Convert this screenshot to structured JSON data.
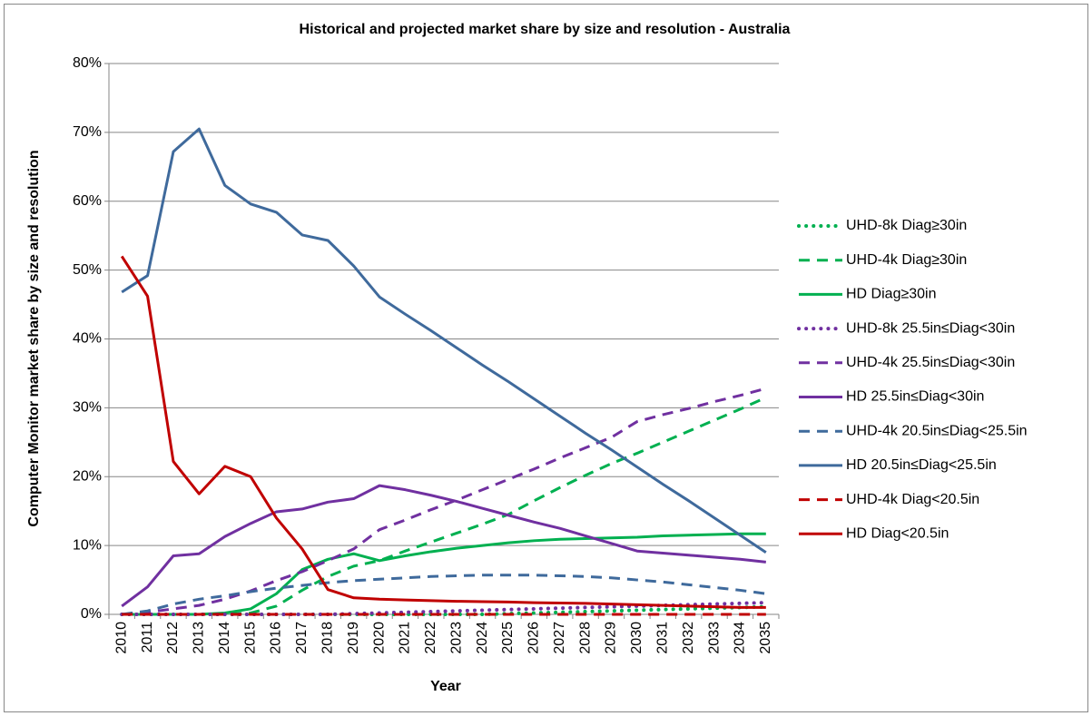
{
  "chart_data": {
    "type": "line",
    "title": "Historical and projected market share by size and resolution - Australia",
    "x_label": "Year",
    "y_label": "Computer Monitor market share by size and resolution",
    "categories": [
      "2010",
      "2011",
      "2012",
      "2013",
      "2014",
      "2015",
      "2016",
      "2017",
      "2018",
      "2019",
      "2020",
      "2021",
      "2022",
      "2023",
      "2024",
      "2025",
      "2026",
      "2027",
      "2028",
      "2029",
      "2030",
      "2031",
      "2032",
      "2033",
      "2034",
      "2035"
    ],
    "ylim": [
      0,
      80
    ],
    "yticks": [
      {
        "value": 0,
        "label": "0%"
      },
      {
        "value": 10,
        "label": "10%"
      },
      {
        "value": 20,
        "label": "20%"
      },
      {
        "value": 30,
        "label": "30%"
      },
      {
        "value": 40,
        "label": "40%"
      },
      {
        "value": 50,
        "label": "50%"
      },
      {
        "value": 60,
        "label": "60%"
      },
      {
        "value": 70,
        "label": "70%"
      },
      {
        "value": 80,
        "label": "80%"
      }
    ],
    "grid": true,
    "legend": "right",
    "series": [
      {
        "name": "UHD-8k Diag≥30in",
        "color": "#00b050",
        "dash": "dotted",
        "values": [
          0,
          0,
          0,
          0,
          0,
          0,
          0,
          0,
          0,
          0,
          0,
          0,
          0,
          0,
          0,
          0.1,
          0.2,
          0.3,
          0.4,
          0.5,
          0.6,
          0.7,
          0.8,
          0.9,
          1.0,
          1.1
        ]
      },
      {
        "name": "UHD-4k Diag≥30in",
        "color": "#00b050",
        "dash": "dashed",
        "values": [
          0,
          0,
          0,
          0,
          0,
          0.2,
          1.2,
          3.5,
          5.5,
          7.0,
          7.8,
          9.2,
          10.5,
          11.8,
          13.1,
          14.5,
          16.5,
          18.4,
          20.2,
          21.9,
          23.4,
          25.0,
          26.6,
          28.2,
          29.8,
          31.5
        ]
      },
      {
        "name": "HD Diag≥30in",
        "color": "#00b050",
        "dash": "solid",
        "values": [
          0,
          0,
          0,
          0,
          0.2,
          0.8,
          3.0,
          6.5,
          8.0,
          8.8,
          7.8,
          8.5,
          9.1,
          9.6,
          10.0,
          10.4,
          10.7,
          10.9,
          11.0,
          11.1,
          11.2,
          11.4,
          11.5,
          11.6,
          11.7,
          11.7
        ]
      },
      {
        "name": "UHD-8k 25.5in≤Diag<30in",
        "color": "#7030a0",
        "dash": "dotted",
        "values": [
          0,
          0,
          0,
          0,
          0,
          0,
          0,
          0,
          0,
          0.1,
          0.2,
          0.3,
          0.4,
          0.5,
          0.6,
          0.7,
          0.8,
          0.9,
          1.0,
          1.1,
          1.2,
          1.3,
          1.4,
          1.5,
          1.6,
          1.7
        ]
      },
      {
        "name": "UHD-4k 25.5in≤Diag<30in",
        "color": "#7030a0",
        "dash": "dashed",
        "values": [
          0,
          0.3,
          0.8,
          1.3,
          2.2,
          3.4,
          4.9,
          6.2,
          7.8,
          9.5,
          12.3,
          13.7,
          15.2,
          16.6,
          18.1,
          19.6,
          21.1,
          22.7,
          24.2,
          25.7,
          28.0,
          29.0,
          29.9,
          30.9,
          31.8,
          32.8
        ]
      },
      {
        "name": "HD 25.5in≤Diag<30in",
        "color": "#7030a0",
        "dash": "solid",
        "values": [
          1.2,
          4.0,
          8.5,
          8.8,
          11.3,
          13.2,
          14.9,
          15.3,
          16.3,
          16.8,
          18.7,
          18.1,
          17.3,
          16.4,
          15.4,
          14.4,
          13.4,
          12.5,
          11.4,
          10.3,
          9.2,
          8.9,
          8.6,
          8.3,
          8.0,
          7.6
        ]
      },
      {
        "name": "UHD-4k 20.5in≤Diag<25.5in",
        "color": "#3f6a9c",
        "dash": "dashed",
        "values": [
          0,
          0.5,
          1.5,
          2.2,
          2.7,
          3.3,
          3.8,
          4.2,
          4.6,
          4.9,
          5.1,
          5.3,
          5.5,
          5.6,
          5.7,
          5.7,
          5.7,
          5.6,
          5.5,
          5.3,
          5.0,
          4.7,
          4.3,
          3.9,
          3.5,
          3.0
        ]
      },
      {
        "name": "HD 20.5in≤Diag<25.5in",
        "color": "#3f6a9c",
        "dash": "solid",
        "values": [
          46.8,
          49.2,
          67.2,
          70.5,
          62.3,
          59.6,
          58.4,
          55.1,
          54.3,
          50.6,
          46.1,
          43.6,
          41.2,
          38.7,
          36.2,
          33.8,
          31.3,
          28.8,
          26.3,
          23.9,
          21.4,
          18.9,
          16.5,
          14.0,
          11.5,
          9.0
        ]
      },
      {
        "name": "UHD-4k Diag<20.5in",
        "color": "#c00000",
        "dash": "dashed",
        "values": [
          0,
          0,
          0,
          0,
          0,
          0,
          0,
          0,
          0,
          0,
          0,
          0,
          0,
          0,
          0,
          0,
          0,
          0,
          0,
          0,
          0,
          0,
          0,
          0,
          0,
          0
        ]
      },
      {
        "name": "HD Diag<20.5in",
        "color": "#c00000",
        "dash": "solid",
        "values": [
          52,
          46.2,
          22.2,
          17.5,
          21.5,
          20,
          14,
          9.5,
          3.6,
          2.4,
          2.2,
          2.1,
          2.0,
          1.9,
          1.85,
          1.8,
          1.7,
          1.65,
          1.6,
          1.5,
          1.4,
          1.3,
          1.2,
          1.1,
          1.0,
          1.0
        ]
      }
    ]
  }
}
